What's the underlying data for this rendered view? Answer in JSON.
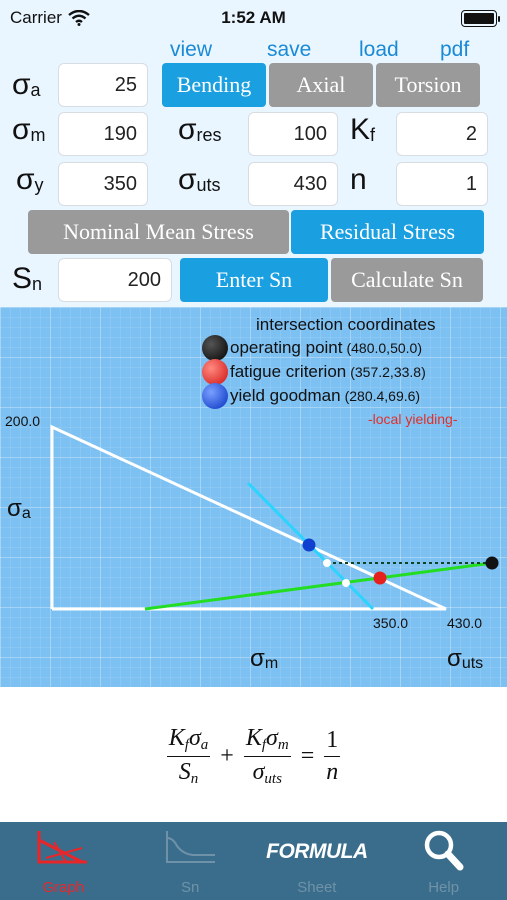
{
  "status": {
    "carrier": "Carrier",
    "time": "1:52 AM"
  },
  "toplinks": [
    "view",
    "save",
    "load",
    "pdf"
  ],
  "inputs": {
    "sigma_a": {
      "sym": "σ",
      "sub": "a",
      "value": "25"
    },
    "sigma_m": {
      "sym": "σ",
      "sub": "m",
      "value": "190"
    },
    "sigma_y": {
      "sym": "σ",
      "sub": "y",
      "value": "350"
    },
    "sigma_res": {
      "sym": "σ",
      "sub": "res",
      "value": "100"
    },
    "sigma_uts": {
      "sym": "σ",
      "sub": "uts",
      "value": "430"
    },
    "kf": {
      "sym": "K",
      "sub": "f",
      "value": "2"
    },
    "n": {
      "sym": "n",
      "value": "1"
    },
    "sn": {
      "sym": "S",
      "sub": "n",
      "value": "200"
    }
  },
  "load_type": {
    "options": [
      "Bending",
      "Axial",
      "Torsion"
    ],
    "selected": "Bending"
  },
  "stress_mode": {
    "options": [
      "Nominal Mean Stress",
      "Residual Stress"
    ],
    "selected": "Residual Stress"
  },
  "sn_mode": {
    "options": [
      "Enter Sn",
      "Calculate Sn"
    ],
    "selected": "Enter Sn"
  },
  "graph": {
    "legend_title": "intersection coordinates",
    "legend": [
      {
        "name": "operating point",
        "coord": "(480.0,50.0)",
        "color": "#111111"
      },
      {
        "name": "fatigue criterion",
        "coord": "(357.2,33.8)",
        "color": "#e5211d"
      },
      {
        "name": "yield goodman",
        "coord": "(280.4,69.6)",
        "color": "#1040d0"
      }
    ],
    "warning": "-local yielding-",
    "y_tick": "200.0",
    "x_ticks": [
      "350.0",
      "430.0"
    ],
    "y_axis_sym": "σ",
    "y_axis_sub": "a",
    "x_axis_sym": "σ",
    "x_axis_sub": "m",
    "uts_sym": "σ",
    "uts_sub": "uts",
    "colors": {
      "background": "#7dc0f2",
      "goodman": "#ffffff",
      "yield": "#2ad4ff",
      "load_line": "#22dd22"
    }
  },
  "formula": {
    "t1_num_a": "K",
    "t1_num_a_sub": "f",
    "t1_num_b": "σ",
    "t1_num_b_sub": "a",
    "t1_den": "S",
    "t1_den_sub": "n",
    "plus": "+",
    "t2_num_a": "K",
    "t2_num_a_sub": "f",
    "t2_num_b": "σ",
    "t2_num_b_sub": "m",
    "t2_den": "σ",
    "t2_den_sub": "uts",
    "equals": "=",
    "rhs_num": "1",
    "rhs_den": "n"
  },
  "tabs": [
    {
      "label": "Graph",
      "icon": "graph-icon",
      "active": true
    },
    {
      "label": "Sn",
      "icon": "sn-curve-icon",
      "active": false
    },
    {
      "label": "Sheet",
      "icon": "formula-icon",
      "icon_text": "FORMULA",
      "active": false
    },
    {
      "label": "Help",
      "icon": "magnifier-icon",
      "active": false
    }
  ]
}
